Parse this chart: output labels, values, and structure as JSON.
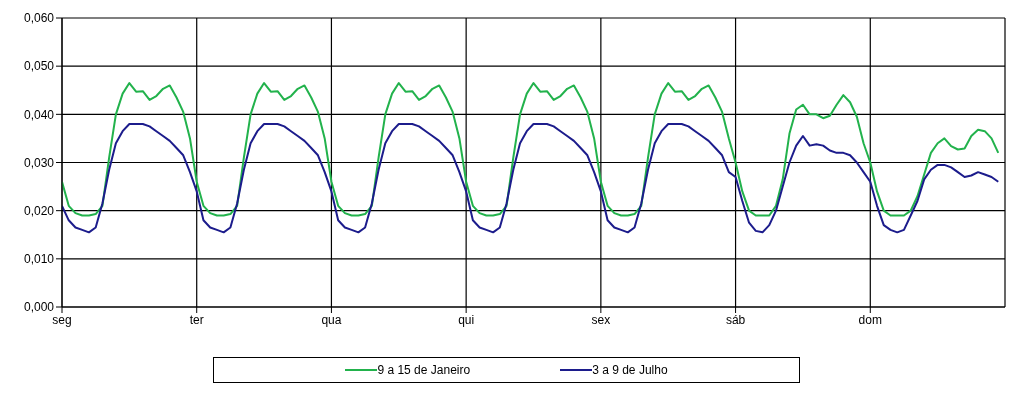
{
  "chart_data": {
    "type": "line",
    "legend": "bottom",
    "grid": true,
    "marker": "none",
    "line_style": "solid",
    "categories": [
      "seg",
      null,
      null,
      null,
      null,
      null,
      null,
      null,
      null,
      null,
      null,
      null,
      null,
      null,
      null,
      null,
      null,
      null,
      null,
      null,
      "ter",
      null,
      null,
      null,
      null,
      null,
      null,
      null,
      null,
      null,
      null,
      null,
      null,
      null,
      null,
      null,
      null,
      null,
      null,
      null,
      "qua",
      null,
      null,
      null,
      null,
      null,
      null,
      null,
      null,
      null,
      null,
      null,
      null,
      null,
      null,
      null,
      null,
      null,
      null,
      null,
      "qui",
      null,
      null,
      null,
      null,
      null,
      null,
      null,
      null,
      null,
      null,
      null,
      null,
      null,
      null,
      null,
      null,
      null,
      null,
      null,
      "sex",
      null,
      null,
      null,
      null,
      null,
      null,
      null,
      null,
      null,
      null,
      null,
      null,
      null,
      null,
      null,
      null,
      null,
      null,
      null,
      "sáb",
      null,
      null,
      null,
      null,
      null,
      null,
      null,
      null,
      null,
      null,
      null,
      null,
      null,
      null,
      null,
      null,
      null,
      null,
      null,
      "dom",
      null,
      null,
      null,
      null,
      null,
      null,
      null,
      null,
      null,
      null,
      null,
      null,
      null,
      null,
      null,
      null,
      null,
      null,
      null
    ],
    "ylim": [
      0,
      0.06
    ],
    "yticks": [
      {
        "value": 0,
        "label": "0,000"
      },
      {
        "value": 0.01,
        "label": "0,010"
      },
      {
        "value": 0.02,
        "label": "0,020"
      },
      {
        "value": 0.03,
        "label": "0,030"
      },
      {
        "value": 0.04,
        "label": "0,040"
      },
      {
        "value": 0.05,
        "label": "0,050"
      },
      {
        "value": 0.06,
        "label": "0,060"
      }
    ],
    "series": [
      {
        "name": "9 a 15 de Janeiro",
        "color": "#22b24c",
        "values": [
          0.026,
          0.021,
          0.0195,
          0.019,
          0.019,
          0.0193,
          0.021,
          0.031,
          0.04,
          0.0443,
          0.0465,
          0.0447,
          0.0448,
          0.043,
          0.0438,
          0.0453,
          0.046,
          0.0435,
          0.0405,
          0.035,
          0.026,
          0.021,
          0.0195,
          0.019,
          0.019,
          0.0193,
          0.021,
          0.031,
          0.04,
          0.0443,
          0.0465,
          0.0447,
          0.0448,
          0.043,
          0.0438,
          0.0453,
          0.046,
          0.0435,
          0.0405,
          0.035,
          0.026,
          0.021,
          0.0195,
          0.019,
          0.019,
          0.0193,
          0.021,
          0.031,
          0.04,
          0.0443,
          0.0465,
          0.0447,
          0.0448,
          0.043,
          0.0438,
          0.0453,
          0.046,
          0.0435,
          0.0405,
          0.035,
          0.026,
          0.021,
          0.0195,
          0.019,
          0.019,
          0.0193,
          0.021,
          0.031,
          0.04,
          0.0443,
          0.0465,
          0.0447,
          0.0448,
          0.043,
          0.0438,
          0.0453,
          0.046,
          0.0435,
          0.0405,
          0.035,
          0.026,
          0.021,
          0.0195,
          0.019,
          0.019,
          0.0193,
          0.021,
          0.031,
          0.04,
          0.0443,
          0.0465,
          0.0447,
          0.0448,
          0.043,
          0.0438,
          0.0453,
          0.046,
          0.0435,
          0.0405,
          0.035,
          0.03,
          0.024,
          0.02,
          0.019,
          0.019,
          0.019,
          0.021,
          0.0265,
          0.036,
          0.041,
          0.042,
          0.04,
          0.04,
          0.0392,
          0.0397,
          0.042,
          0.044,
          0.0425,
          0.0395,
          0.034,
          0.03,
          0.024,
          0.02,
          0.019,
          0.019,
          0.019,
          0.02,
          0.023,
          0.0275,
          0.032,
          0.034,
          0.035,
          0.0334,
          0.0327,
          0.0329,
          0.0355,
          0.0368,
          0.0365,
          0.035,
          0.032
        ]
      },
      {
        "name": "3 a 9 de Julho",
        "color": "#1c1c8c",
        "values": [
          0.021,
          0.018,
          0.0165,
          0.016,
          0.0155,
          0.0165,
          0.0215,
          0.0285,
          0.034,
          0.0365,
          0.038,
          0.038,
          0.038,
          0.0375,
          0.0365,
          0.0355,
          0.0345,
          0.033,
          0.0315,
          0.028,
          0.024,
          0.018,
          0.0165,
          0.016,
          0.0155,
          0.0165,
          0.0215,
          0.0285,
          0.034,
          0.0365,
          0.038,
          0.038,
          0.038,
          0.0375,
          0.0365,
          0.0355,
          0.0345,
          0.033,
          0.0315,
          0.028,
          0.024,
          0.018,
          0.0165,
          0.016,
          0.0155,
          0.0165,
          0.0215,
          0.0285,
          0.034,
          0.0365,
          0.038,
          0.038,
          0.038,
          0.0375,
          0.0365,
          0.0355,
          0.0345,
          0.033,
          0.0315,
          0.028,
          0.024,
          0.018,
          0.0165,
          0.016,
          0.0155,
          0.0165,
          0.0215,
          0.0285,
          0.034,
          0.0365,
          0.038,
          0.038,
          0.038,
          0.0375,
          0.0365,
          0.0355,
          0.0345,
          0.033,
          0.0315,
          0.028,
          0.024,
          0.018,
          0.0165,
          0.016,
          0.0155,
          0.0165,
          0.0215,
          0.0285,
          0.034,
          0.0365,
          0.038,
          0.038,
          0.038,
          0.0375,
          0.0365,
          0.0355,
          0.0345,
          0.033,
          0.0315,
          0.028,
          0.027,
          0.022,
          0.0175,
          0.0158,
          0.0155,
          0.017,
          0.02,
          0.025,
          0.03,
          0.0335,
          0.0355,
          0.0335,
          0.0338,
          0.0335,
          0.0325,
          0.032,
          0.032,
          0.0315,
          0.03,
          0.028,
          0.026,
          0.021,
          0.017,
          0.016,
          0.0155,
          0.016,
          0.019,
          0.022,
          0.0265,
          0.0285,
          0.0295,
          0.0295,
          0.029,
          0.028,
          0.027,
          0.0273,
          0.028,
          0.0275,
          0.027,
          0.026
        ]
      }
    ]
  }
}
